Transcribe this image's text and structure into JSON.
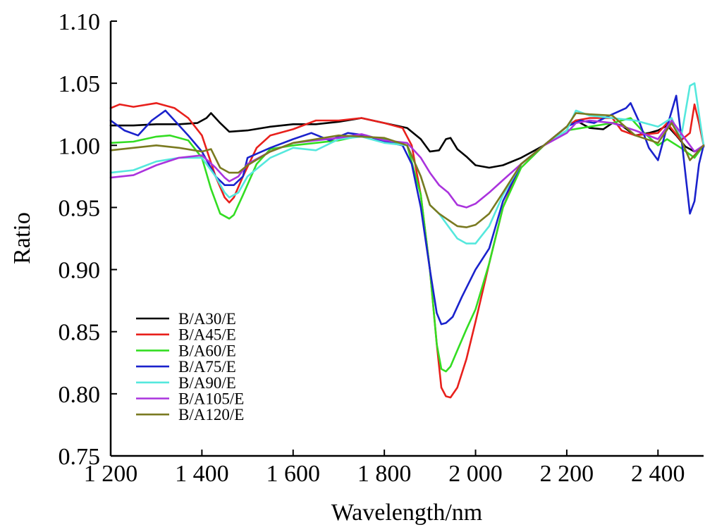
{
  "chart_data": {
    "type": "line",
    "title": "",
    "xlabel": "Wavelength/nm",
    "ylabel": "Ratio",
    "xlim": [
      1200,
      2500
    ],
    "ylim": [
      0.75,
      1.1
    ],
    "xticks": [
      1200,
      1400,
      1600,
      1800,
      2000,
      2200,
      2400
    ],
    "xtick_labels": [
      "1 200",
      "1 400",
      "1 600",
      "1 800",
      "2 000",
      "2 200",
      "2 400"
    ],
    "yticks": [
      0.75,
      0.8,
      0.85,
      0.9,
      0.95,
      1.0,
      1.05,
      1.1
    ],
    "ytick_labels": [
      "0.75",
      "0.80",
      "0.85",
      "0.90",
      "0.95",
      "1.00",
      "1.05",
      "1.10"
    ],
    "grid": false,
    "legend_position": "bottom-left",
    "series": [
      {
        "name": "B/A30/E",
        "color": "#000000",
        "x": [
          1200,
          1250,
          1300,
          1350,
          1390,
          1410,
          1420,
          1440,
          1460,
          1500,
          1550,
          1600,
          1650,
          1700,
          1750,
          1800,
          1850,
          1880,
          1900,
          1920,
          1935,
          1945,
          1960,
          1980,
          2000,
          2030,
          2060,
          2100,
          2150,
          2200,
          2220,
          2250,
          2280,
          2300,
          2320,
          2350,
          2380,
          2400,
          2420,
          2440,
          2460,
          2480,
          2500
        ],
        "y": [
          1.016,
          1.016,
          1.017,
          1.017,
          1.018,
          1.022,
          1.026,
          1.018,
          1.011,
          1.012,
          1.015,
          1.017,
          1.017,
          1.019,
          1.022,
          1.018,
          1.014,
          1.005,
          0.995,
          0.996,
          1.005,
          1.006,
          0.997,
          0.991,
          0.984,
          0.982,
          0.984,
          0.99,
          1.0,
          1.015,
          1.02,
          1.014,
          1.013,
          1.018,
          1.016,
          1.008,
          1.01,
          1.012,
          1.016,
          1.008,
          0.999,
          0.995,
          0.999
        ]
      },
      {
        "name": "B/A45/E",
        "color": "#e8201c",
        "x": [
          1200,
          1220,
          1250,
          1300,
          1340,
          1370,
          1400,
          1430,
          1450,
          1460,
          1470,
          1490,
          1520,
          1550,
          1600,
          1650,
          1700,
          1750,
          1800,
          1840,
          1860,
          1880,
          1900,
          1915,
          1925,
          1935,
          1945,
          1960,
          1980,
          2000,
          2030,
          2060,
          2100,
          2150,
          2200,
          2220,
          2250,
          2300,
          2320,
          2350,
          2400,
          2420,
          2450,
          2470,
          2480,
          2490,
          2500
        ],
        "y": [
          1.03,
          1.033,
          1.031,
          1.034,
          1.03,
          1.022,
          1.008,
          0.975,
          0.958,
          0.954,
          0.958,
          0.975,
          0.998,
          1.008,
          1.013,
          1.02,
          1.02,
          1.022,
          1.018,
          1.014,
          1.0,
          0.96,
          0.9,
          0.84,
          0.805,
          0.798,
          0.797,
          0.805,
          0.828,
          0.858,
          0.905,
          0.95,
          0.985,
          1.0,
          1.015,
          1.02,
          1.022,
          1.022,
          1.012,
          1.008,
          1.01,
          1.018,
          1.004,
          1.01,
          1.033,
          1.018,
          1.0
        ]
      },
      {
        "name": "B/A60/E",
        "color": "#33dd22",
        "x": [
          1200,
          1250,
          1300,
          1330,
          1370,
          1400,
          1420,
          1440,
          1460,
          1470,
          1490,
          1520,
          1550,
          1600,
          1650,
          1700,
          1750,
          1800,
          1850,
          1880,
          1900,
          1915,
          1925,
          1935,
          1945,
          1960,
          1980,
          2000,
          2030,
          2060,
          2100,
          2150,
          2200,
          2250,
          2300,
          2340,
          2370,
          2400,
          2420,
          2450,
          2480,
          2500
        ],
        "y": [
          1.002,
          1.003,
          1.007,
          1.008,
          1.004,
          0.99,
          0.965,
          0.945,
          0.941,
          0.944,
          0.96,
          0.985,
          0.997,
          1.0,
          1.002,
          1.004,
          1.008,
          1.005,
          1.0,
          0.96,
          0.9,
          0.84,
          0.82,
          0.818,
          0.822,
          0.835,
          0.852,
          0.868,
          0.905,
          0.95,
          0.982,
          1.0,
          1.012,
          1.015,
          1.018,
          1.022,
          1.01,
          1.0,
          1.005,
          0.998,
          0.99,
          1.0
        ]
      },
      {
        "name": "B/A75/E",
        "color": "#1a22cc",
        "x": [
          1200,
          1230,
          1260,
          1290,
          1320,
          1340,
          1370,
          1400,
          1430,
          1450,
          1470,
          1490,
          1500,
          1550,
          1600,
          1640,
          1680,
          1720,
          1760,
          1800,
          1840,
          1860,
          1880,
          1900,
          1915,
          1925,
          1935,
          1950,
          1970,
          2000,
          2030,
          2060,
          2100,
          2150,
          2200,
          2230,
          2260,
          2300,
          2330,
          2340,
          2360,
          2380,
          2400,
          2420,
          2440,
          2450,
          2470,
          2480,
          2490,
          2500
        ],
        "y": [
          1.02,
          1.012,
          1.008,
          1.02,
          1.028,
          1.02,
          1.008,
          0.995,
          0.975,
          0.968,
          0.968,
          0.975,
          0.99,
          0.998,
          1.005,
          1.01,
          1.004,
          1.01,
          1.008,
          1.003,
          1.0,
          0.985,
          0.95,
          0.9,
          0.865,
          0.856,
          0.857,
          0.862,
          0.878,
          0.9,
          0.917,
          0.955,
          0.985,
          1.0,
          1.015,
          1.02,
          1.018,
          1.025,
          1.03,
          1.034,
          1.018,
          0.998,
          0.988,
          1.015,
          1.04,
          1.01,
          0.945,
          0.955,
          0.985,
          1.0
        ]
      },
      {
        "name": "B/A90/E",
        "color": "#55e8dd",
        "x": [
          1200,
          1250,
          1300,
          1350,
          1400,
          1430,
          1450,
          1460,
          1480,
          1500,
          1550,
          1600,
          1650,
          1700,
          1750,
          1800,
          1850,
          1880,
          1900,
          1920,
          1940,
          1960,
          1980,
          2000,
          2030,
          2060,
          2100,
          2150,
          2200,
          2220,
          2250,
          2300,
          2350,
          2400,
          2430,
          2450,
          2470,
          2480,
          2500
        ],
        "y": [
          0.978,
          0.98,
          0.987,
          0.99,
          0.99,
          0.975,
          0.962,
          0.958,
          0.962,
          0.975,
          0.99,
          0.998,
          0.996,
          1.005,
          1.007,
          1.002,
          1.0,
          0.975,
          0.952,
          0.945,
          0.935,
          0.925,
          0.921,
          0.921,
          0.935,
          0.96,
          0.985,
          1.0,
          1.012,
          1.028,
          1.024,
          1.022,
          1.02,
          1.015,
          1.022,
          1.005,
          1.048,
          1.05,
          1.0
        ]
      },
      {
        "name": "B/A105/E",
        "color": "#aa33dd",
        "x": [
          1200,
          1250,
          1300,
          1350,
          1400,
          1430,
          1450,
          1460,
          1480,
          1500,
          1550,
          1600,
          1650,
          1700,
          1750,
          1800,
          1850,
          1880,
          1900,
          1920,
          1940,
          1960,
          1980,
          2000,
          2030,
          2060,
          2100,
          2150,
          2200,
          2220,
          2250,
          2300,
          2350,
          2400,
          2430,
          2450,
          2480,
          2500
        ],
        "y": [
          0.974,
          0.976,
          0.984,
          0.99,
          0.992,
          0.982,
          0.974,
          0.971,
          0.975,
          0.985,
          0.995,
          1.002,
          1.004,
          1.006,
          1.009,
          1.004,
          1.002,
          0.99,
          0.978,
          0.968,
          0.962,
          0.952,
          0.95,
          0.953,
          0.962,
          0.972,
          0.985,
          1.0,
          1.01,
          1.018,
          1.02,
          1.018,
          1.012,
          1.005,
          1.02,
          1.01,
          0.995,
          1.0
        ]
      },
      {
        "name": "B/A120/E",
        "color": "#7a7a20",
        "x": [
          1200,
          1250,
          1300,
          1350,
          1400,
          1420,
          1440,
          1460,
          1480,
          1500,
          1550,
          1600,
          1650,
          1700,
          1750,
          1800,
          1850,
          1880,
          1900,
          1920,
          1940,
          1960,
          1980,
          2000,
          2030,
          2060,
          2100,
          2150,
          2200,
          2220,
          2250,
          2300,
          2350,
          2400,
          2430,
          2450,
          2470,
          2500
        ],
        "y": [
          0.996,
          0.998,
          1.0,
          0.998,
          0.995,
          0.997,
          0.982,
          0.978,
          0.978,
          0.984,
          0.995,
          1.002,
          1.005,
          1.008,
          1.007,
          1.006,
          1.0,
          0.975,
          0.952,
          0.945,
          0.94,
          0.935,
          0.934,
          0.936,
          0.945,
          0.962,
          0.985,
          1.0,
          1.015,
          1.026,
          1.025,
          1.024,
          1.008,
          1.002,
          1.018,
          1.005,
          0.988,
          1.0
        ]
      }
    ]
  }
}
